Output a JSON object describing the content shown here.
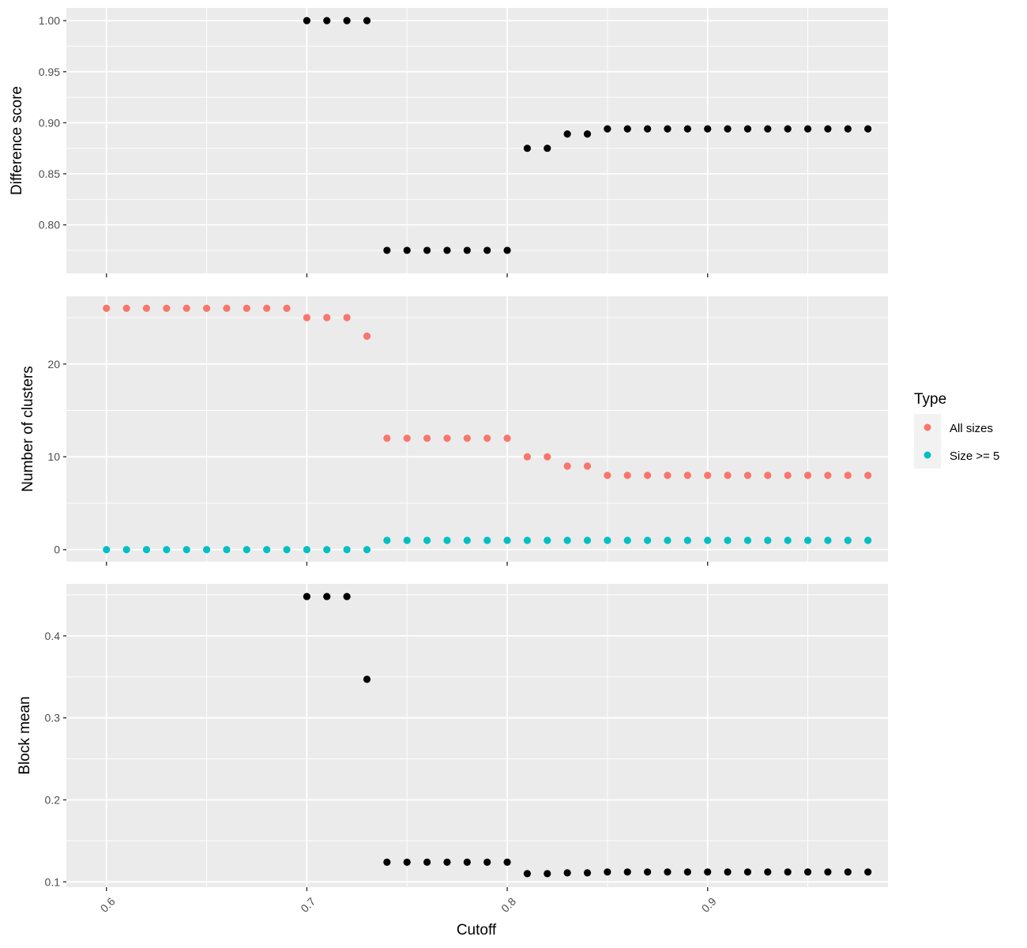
{
  "chart_data": {
    "type": "scatter",
    "x_axis": {
      "title": "Cutoff",
      "range": [
        0.58,
        0.99
      ],
      "ticks": [
        0.6,
        0.7,
        0.8,
        0.9
      ],
      "tick_labels": [
        "0.6",
        "0.7",
        "0.8",
        "0.9"
      ],
      "minor_ticks": [
        0.65,
        0.75,
        0.85,
        0.95
      ],
      "tick_label_rotation_deg": 45
    },
    "grid": true,
    "legend": {
      "title": "Type",
      "placement": "right",
      "entries": [
        {
          "label": "All sizes",
          "color": "#F8766D"
        },
        {
          "label": "Size >= 5",
          "color": "#00BFC4"
        }
      ]
    },
    "panels": [
      {
        "ylabel": "Difference score",
        "ylim": [
          0.7525,
          1.0125
        ],
        "ticks": [
          0.8,
          0.85,
          0.9,
          0.95,
          1.0
        ],
        "tick_labels": [
          "0.80",
          "0.85",
          "0.90",
          "0.95",
          "1.00"
        ],
        "minor_ticks": [
          0.775,
          0.825,
          0.875,
          0.925,
          0.975
        ],
        "series": [
          {
            "color": "#000000",
            "x": [
              0.7,
              0.71,
              0.72,
              0.73,
              0.74,
              0.75,
              0.76,
              0.77,
              0.78,
              0.79,
              0.8,
              0.81,
              0.82,
              0.83,
              0.84,
              0.85,
              0.86,
              0.87,
              0.88,
              0.89,
              0.9,
              0.91,
              0.92,
              0.93,
              0.94,
              0.95,
              0.96,
              0.97,
              0.98
            ],
            "y": [
              1.0,
              1.0,
              1.0,
              1.0,
              0.775,
              0.775,
              0.775,
              0.775,
              0.775,
              0.775,
              0.775,
              0.875,
              0.875,
              0.889,
              0.889,
              0.894,
              0.894,
              0.894,
              0.894,
              0.894,
              0.894,
              0.894,
              0.894,
              0.894,
              0.894,
              0.894,
              0.894,
              0.894,
              0.894
            ]
          }
        ]
      },
      {
        "ylabel": "Number of clusters",
        "ylim": [
          -1.3,
          27.3
        ],
        "ticks": [
          0,
          10,
          20
        ],
        "tick_labels": [
          "0",
          "10",
          "20"
        ],
        "minor_ticks": [
          5,
          15,
          25
        ],
        "series": [
          {
            "name": "All sizes",
            "color": "#F8766D",
            "x": [
              0.6,
              0.61,
              0.62,
              0.63,
              0.64,
              0.65,
              0.66,
              0.67,
              0.68,
              0.69,
              0.7,
              0.71,
              0.72,
              0.73,
              0.74,
              0.75,
              0.76,
              0.77,
              0.78,
              0.79,
              0.8,
              0.81,
              0.82,
              0.83,
              0.84,
              0.85,
              0.86,
              0.87,
              0.88,
              0.89,
              0.9,
              0.91,
              0.92,
              0.93,
              0.94,
              0.95,
              0.96,
              0.97,
              0.98
            ],
            "y": [
              26,
              26,
              26,
              26,
              26,
              26,
              26,
              26,
              26,
              26,
              25,
              25,
              25,
              23,
              12,
              12,
              12,
              12,
              12,
              12,
              12,
              10,
              10,
              9,
              9,
              8,
              8,
              8,
              8,
              8,
              8,
              8,
              8,
              8,
              8,
              8,
              8,
              8,
              8
            ]
          },
          {
            "name": "Size >= 5",
            "color": "#00BFC4",
            "x": [
              0.6,
              0.61,
              0.62,
              0.63,
              0.64,
              0.65,
              0.66,
              0.67,
              0.68,
              0.69,
              0.7,
              0.71,
              0.72,
              0.73,
              0.74,
              0.75,
              0.76,
              0.77,
              0.78,
              0.79,
              0.8,
              0.81,
              0.82,
              0.83,
              0.84,
              0.85,
              0.86,
              0.87,
              0.88,
              0.89,
              0.9,
              0.91,
              0.92,
              0.93,
              0.94,
              0.95,
              0.96,
              0.97,
              0.98
            ],
            "y": [
              0,
              0,
              0,
              0,
              0,
              0,
              0,
              0,
              0,
              0,
              0,
              0,
              0,
              0,
              1,
              1,
              1,
              1,
              1,
              1,
              1,
              1,
              1,
              1,
              1,
              1,
              1,
              1,
              1,
              1,
              1,
              1,
              1,
              1,
              1,
              1,
              1,
              1,
              1
            ]
          }
        ]
      },
      {
        "ylabel": "Block mean",
        "ylim": [
          0.0935,
          0.4635
        ],
        "ticks": [
          0.1,
          0.2,
          0.3,
          0.4
        ],
        "tick_labels": [
          "0.1",
          "0.2",
          "0.3",
          "0.4"
        ],
        "minor_ticks": [
          0.15,
          0.25,
          0.35,
          0.45
        ],
        "series": [
          {
            "color": "#000000",
            "x": [
              0.7,
              0.71,
              0.72,
              0.73,
              0.74,
              0.75,
              0.76,
              0.77,
              0.78,
              0.79,
              0.8,
              0.81,
              0.82,
              0.83,
              0.84,
              0.85,
              0.86,
              0.87,
              0.88,
              0.89,
              0.9,
              0.91,
              0.92,
              0.93,
              0.94,
              0.95,
              0.96,
              0.97,
              0.98
            ],
            "y": [
              0.448,
              0.448,
              0.448,
              0.347,
              0.124,
              0.124,
              0.124,
              0.124,
              0.124,
              0.124,
              0.124,
              0.11,
              0.11,
              0.111,
              0.111,
              0.112,
              0.112,
              0.112,
              0.112,
              0.112,
              0.112,
              0.112,
              0.112,
              0.112,
              0.112,
              0.112,
              0.112,
              0.112,
              0.112
            ]
          }
        ]
      }
    ]
  }
}
